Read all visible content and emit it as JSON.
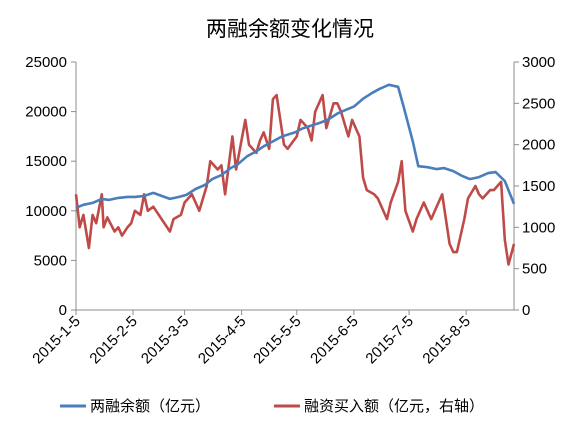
{
  "chart_data": {
    "type": "line",
    "title": "两融余额变化情况",
    "x_tick_labels": [
      "2015-1-5",
      "2015-2-5",
      "2015-3-5",
      "2015-4-5",
      "2015-5-5",
      "2015-6-5",
      "2015-7-5",
      "2015-8-5"
    ],
    "y_left": {
      "range": [
        0,
        25000
      ],
      "ticks": [
        "0",
        "5000",
        "10000",
        "15000",
        "20000",
        "25000"
      ]
    },
    "y_right": {
      "range": [
        0,
        3000
      ],
      "ticks": [
        "0",
        "500",
        "1000",
        "1500",
        "2000",
        "2500",
        "3000"
      ]
    },
    "grid": "none",
    "legend_position": "bottom",
    "series": [
      {
        "name": "两融余额（亿元）",
        "axis": "left",
        "color": "#4A7EBB",
        "x": [
          "2015-01-05",
          "2015-01-09",
          "2015-01-14",
          "2015-01-19",
          "2015-01-23",
          "2015-01-28",
          "2015-02-02",
          "2015-02-06",
          "2015-02-11",
          "2015-02-16",
          "2015-02-25",
          "2015-03-02",
          "2015-03-06",
          "2015-03-11",
          "2015-03-16",
          "2015-03-20",
          "2015-03-25",
          "2015-03-30",
          "2015-04-03",
          "2015-04-08",
          "2015-04-13",
          "2015-04-17",
          "2015-04-22",
          "2015-04-27",
          "2015-05-04",
          "2015-05-08",
          "2015-05-13",
          "2015-05-18",
          "2015-05-22",
          "2015-05-27",
          "2015-06-01",
          "2015-06-05",
          "2015-06-10",
          "2015-06-15",
          "2015-06-19",
          "2015-06-24",
          "2015-06-29",
          "2015-07-02",
          "2015-07-07",
          "2015-07-10",
          "2015-07-15",
          "2015-07-20",
          "2015-07-24",
          "2015-07-29",
          "2015-08-03",
          "2015-08-07",
          "2015-08-12",
          "2015-08-17",
          "2015-08-21",
          "2015-08-26",
          "2015-08-31"
        ],
        "values": [
          10300,
          10600,
          10800,
          11200,
          11100,
          11300,
          11400,
          11400,
          11500,
          11800,
          11200,
          11400,
          11600,
          12200,
          12600,
          13200,
          13600,
          14300,
          14700,
          15500,
          16000,
          16500,
          17000,
          17500,
          17900,
          18300,
          18600,
          18900,
          19200,
          19800,
          20200,
          20500,
          21300,
          21900,
          22300,
          22700,
          22500,
          20500,
          17000,
          14500,
          14400,
          14200,
          14300,
          14000,
          13500,
          13200,
          13400,
          13800,
          13900,
          13000,
          10700
        ]
      },
      {
        "name": "融资买入额（亿元，右轴）",
        "axis": "right",
        "color": "#BE4B48",
        "x": [
          "2015-01-05",
          "2015-01-07",
          "2015-01-09",
          "2015-01-12",
          "2015-01-14",
          "2015-01-16",
          "2015-01-19",
          "2015-01-20",
          "2015-01-22",
          "2015-01-26",
          "2015-01-28",
          "2015-01-30",
          "2015-02-02",
          "2015-02-04",
          "2015-02-06",
          "2015-02-09",
          "2015-02-11",
          "2015-02-13",
          "2015-02-16",
          "2015-02-25",
          "2015-02-27",
          "2015-03-03",
          "2015-03-05",
          "2015-03-09",
          "2015-03-11",
          "2015-03-13",
          "2015-03-17",
          "2015-03-19",
          "2015-03-23",
          "2015-03-25",
          "2015-03-27",
          "2015-03-31",
          "2015-04-02",
          "2015-04-07",
          "2015-04-09",
          "2015-04-13",
          "2015-04-15",
          "2015-04-17",
          "2015-04-20",
          "2015-04-22",
          "2015-04-24",
          "2015-04-28",
          "2015-04-30",
          "2015-05-05",
          "2015-05-07",
          "2015-05-11",
          "2015-05-13",
          "2015-05-15",
          "2015-05-19",
          "2015-05-21",
          "2015-05-25",
          "2015-05-27",
          "2015-05-29",
          "2015-06-02",
          "2015-06-04",
          "2015-06-08",
          "2015-06-10",
          "2015-06-12",
          "2015-06-16",
          "2015-06-18",
          "2015-06-23",
          "2015-06-25",
          "2015-06-29",
          "2015-07-01",
          "2015-07-03",
          "2015-07-07",
          "2015-07-09",
          "2015-07-13",
          "2015-07-15",
          "2015-07-17",
          "2015-07-21",
          "2015-07-23",
          "2015-07-27",
          "2015-07-29",
          "2015-07-31",
          "2015-08-04",
          "2015-08-06",
          "2015-08-10",
          "2015-08-12",
          "2015-08-14",
          "2015-08-18",
          "2015-08-20",
          "2015-08-24",
          "2015-08-26",
          "2015-08-28",
          "2015-08-31"
        ],
        "values": [
          1400,
          1000,
          1150,
          750,
          1150,
          1050,
          1400,
          1000,
          1120,
          950,
          1000,
          900,
          1000,
          1050,
          1200,
          1150,
          1400,
          1200,
          1250,
          950,
          1100,
          1150,
          1300,
          1400,
          1300,
          1200,
          1500,
          1800,
          1700,
          1750,
          1400,
          2100,
          1700,
          2300,
          2000,
          1900,
          2050,
          2150,
          1950,
          2550,
          2600,
          2000,
          1950,
          2100,
          2300,
          2200,
          2050,
          2400,
          2600,
          2200,
          2500,
          2500,
          2400,
          2100,
          2300,
          2100,
          1600,
          1450,
          1400,
          1350,
          1100,
          1300,
          1550,
          1800,
          1200,
          950,
          1100,
          1300,
          1200,
          1100,
          1300,
          1400,
          800,
          700,
          700,
          1100,
          1350,
          1500,
          1400,
          1350,
          1450,
          1450,
          1550,
          850,
          550,
          800
        ]
      }
    ]
  }
}
